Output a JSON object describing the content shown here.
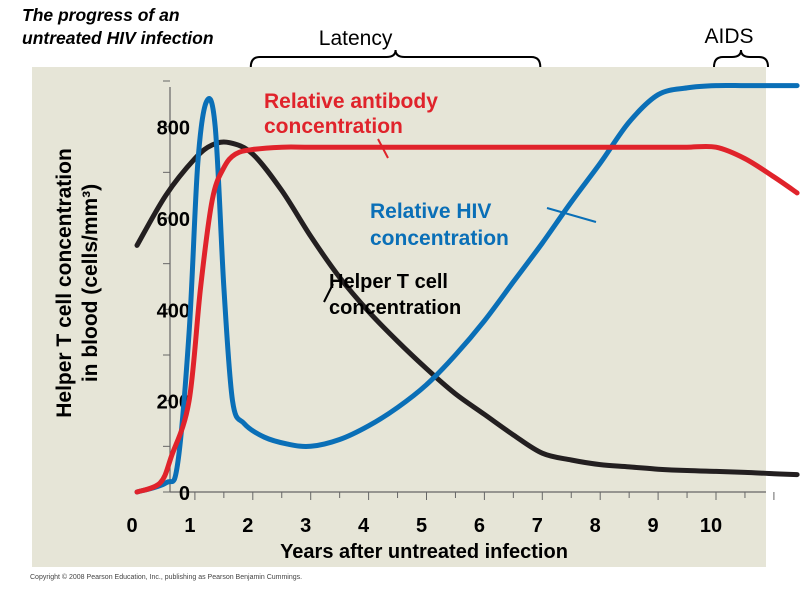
{
  "chart_data": {
    "type": "line",
    "title": "The progress of an untreated HIV infection",
    "title_lines": [
      "The progress of an",
      "untreated HIV infection"
    ],
    "xlabel": "Years after untreated infection",
    "ylabel": "Helper T cell concentration in blood (cells/mm³)",
    "ylabel_lines": [
      "Helper T cell concentration",
      "in blood (cells/mm³)"
    ],
    "xlim": [
      0,
      11
    ],
    "ylim": [
      0,
      900
    ],
    "x_ticks": [
      {
        "value": 0,
        "label": "0"
      },
      {
        "value": 1,
        "label": "1"
      },
      {
        "value": 2,
        "label": "2"
      },
      {
        "value": 3,
        "label": "3"
      },
      {
        "value": 4,
        "label": "4"
      },
      {
        "value": 5,
        "label": "5"
      },
      {
        "value": 6,
        "label": "6"
      },
      {
        "value": 7,
        "label": "7"
      },
      {
        "value": 8,
        "label": "8"
      },
      {
        "value": 9,
        "label": "9"
      },
      {
        "value": 10,
        "label": "10"
      }
    ],
    "y_ticks": [
      {
        "value": 0,
        "label": "0"
      },
      {
        "value": 200,
        "label": "200"
      },
      {
        "value": 400,
        "label": "400"
      },
      {
        "value": 600,
        "label": "600"
      },
      {
        "value": 800,
        "label": "800"
      }
    ],
    "phases": [
      {
        "label": "Latency",
        "start": 2,
        "end": 7
      },
      {
        "label": "AIDS",
        "start": 10,
        "end": 11.4
      }
    ],
    "series": [
      {
        "name": "Helper T cell concentration",
        "label_lines": [
          "Helper T cell",
          "concentration"
        ],
        "color": "#231f20",
        "x": [
          0,
          0.5,
          1,
          1.3,
          1.6,
          2,
          2.5,
          3,
          3.5,
          4,
          4.5,
          5,
          5.5,
          6,
          6.5,
          7,
          7.5,
          8,
          8.5,
          9,
          9.5,
          10,
          10.5,
          11,
          11.4
        ],
        "y": [
          540,
          650,
          730,
          760,
          765,
          740,
          660,
          560,
          470,
          395,
          330,
          270,
          215,
          170,
          125,
          85,
          70,
          60,
          55,
          50,
          47,
          45,
          43,
          40,
          38
        ]
      },
      {
        "name": "Relative HIV concentration",
        "label_lines": [
          "Relative HIV",
          "concentration"
        ],
        "color": "#0a6fb7",
        "x": [
          0,
          0.5,
          0.7,
          0.9,
          1.05,
          1.2,
          1.35,
          1.5,
          1.65,
          1.85,
          2.2,
          2.6,
          3,
          3.5,
          4,
          4.5,
          5,
          5.5,
          6,
          6.5,
          7,
          7.5,
          8,
          8.5,
          9,
          9.5,
          10,
          10.5,
          11,
          11.4
        ],
        "y": [
          0,
          20,
          60,
          350,
          720,
          855,
          800,
          450,
          200,
          150,
          120,
          105,
          100,
          115,
          145,
          185,
          235,
          300,
          375,
          460,
          545,
          635,
          720,
          810,
          870,
          885,
          890,
          890,
          890,
          890
        ]
      },
      {
        "name": "Relative antibody concentration",
        "label_lines": [
          "Relative antibody",
          "concentration"
        ],
        "color": "#e0232b",
        "x": [
          0,
          0.4,
          0.6,
          0.9,
          1.1,
          1.3,
          1.5,
          1.7,
          2,
          2.5,
          3,
          4,
          5,
          6,
          7,
          8,
          9,
          9.5,
          10,
          10.5,
          11,
          11.4
        ],
        "y": [
          0,
          20,
          80,
          200,
          450,
          640,
          710,
          740,
          750,
          755,
          755,
          755,
          755,
          755,
          755,
          755,
          755,
          755,
          755,
          730,
          690,
          655
        ]
      }
    ]
  },
  "footer": {
    "copyright": "Copyright © 2008 Pearson Education, Inc., publishing as Pearson Benjamin Cummings."
  }
}
